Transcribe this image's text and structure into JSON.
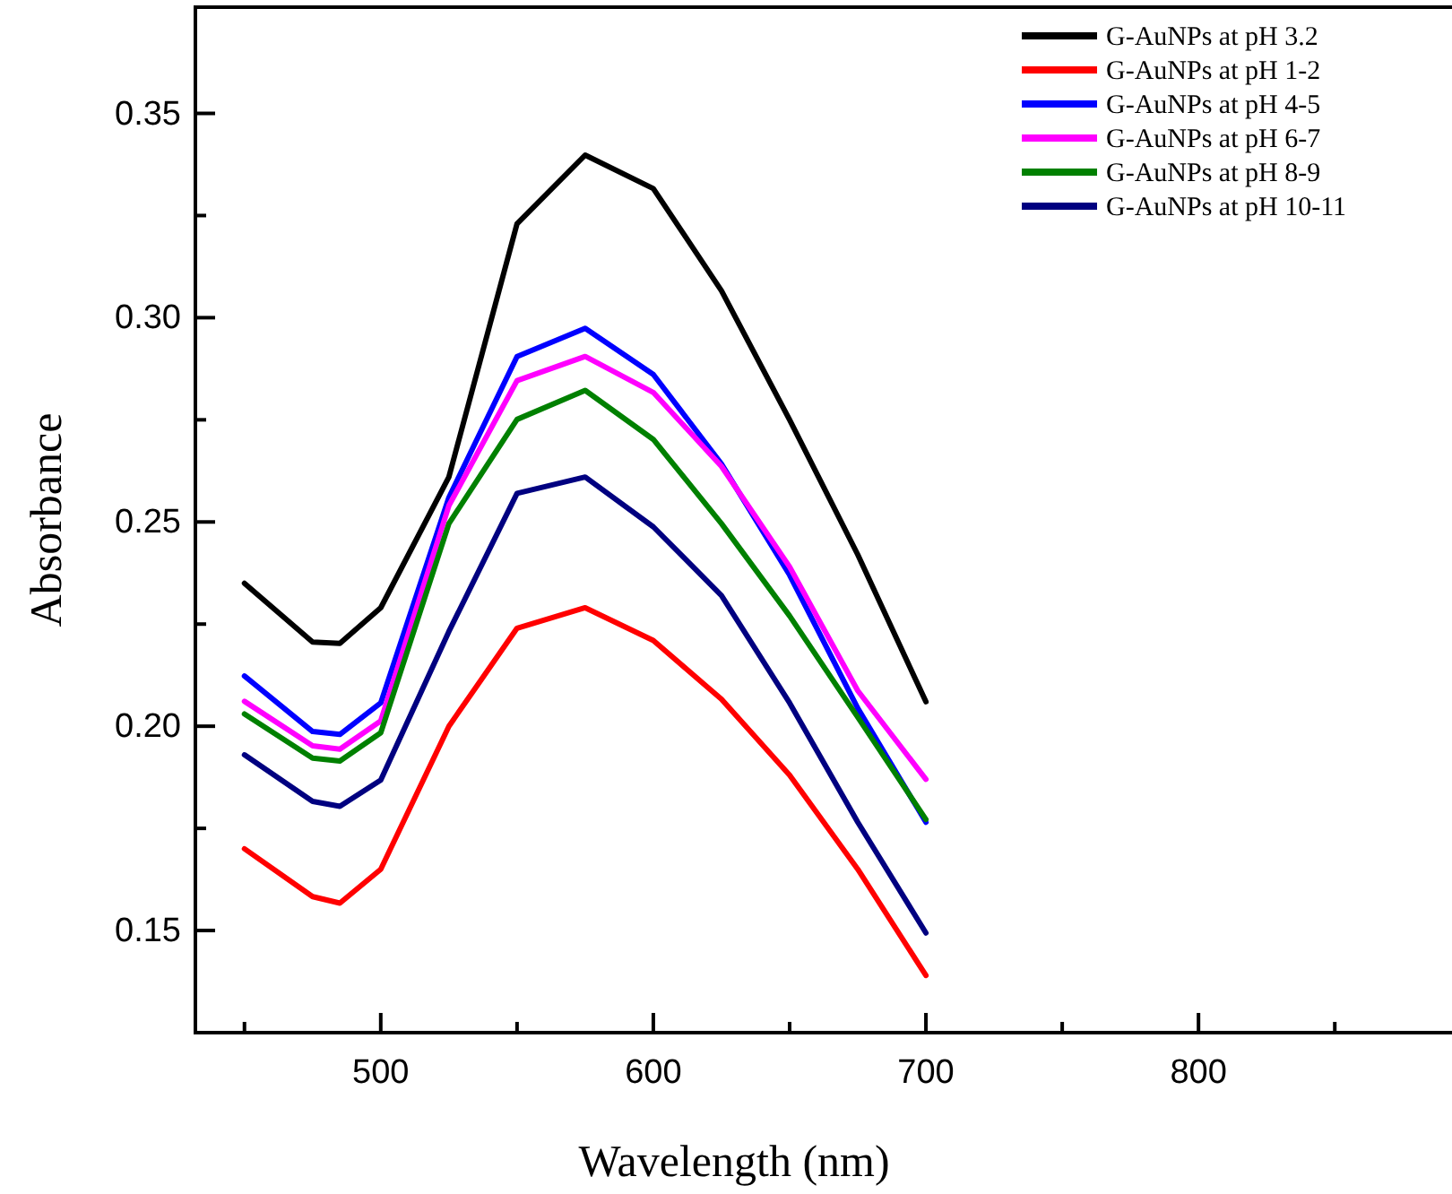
{
  "chart_data": {
    "type": "line",
    "xlabel": "Wavelength (nm)",
    "ylabel": "Absorbance",
    "x": [
      450,
      475,
      485,
      500,
      525,
      550,
      575,
      600,
      625,
      650,
      675,
      700
    ],
    "xlim": [
      432,
      893
    ],
    "xticks": [
      {
        "value": 450,
        "label": null
      },
      500,
      {
        "value": 550,
        "label": null
      },
      600,
      {
        "value": 650,
        "label": null
      },
      700,
      {
        "value": 750,
        "label": null
      },
      800,
      {
        "value": 850,
        "label": null
      }
    ],
    "ylim": [
      0.125,
      0.376
    ],
    "yticks": [
      0.15,
      {
        "value": 0.175,
        "label": null
      },
      {
        "value": 0.2,
        "label": "0.20"
      },
      {
        "value": 0.225,
        "label": null
      },
      0.25,
      {
        "value": 0.275,
        "label": null
      },
      {
        "value": 0.3,
        "label": "0.30"
      },
      {
        "value": 0.325,
        "label": null
      },
      0.35
    ],
    "legend": "top right",
    "grid": false,
    "marker": "none",
    "line_style": "solid",
    "series": [
      {
        "name": "G-AuNPs at pH 3.2",
        "color": "#000000",
        "values": [
          0.235,
          0.2206,
          0.2203,
          0.229,
          0.261,
          0.323,
          0.3398,
          0.3316,
          0.3066,
          0.275,
          0.242,
          0.206
        ]
      },
      {
        "name": "G-AuNPs at pH 1-2",
        "color": "#ff0000",
        "values": [
          0.17,
          0.1583,
          0.1567,
          0.165,
          0.2,
          0.224,
          0.229,
          0.221,
          0.2066,
          0.188,
          0.165,
          0.139
        ]
      },
      {
        "name": "G-AuNPs at pH 4-5",
        "color": "#0000ff",
        "values": [
          0.2123,
          0.1987,
          0.198,
          0.2057,
          0.256,
          0.2905,
          0.2974,
          0.2861,
          0.2642,
          0.237,
          0.2044,
          0.1765
        ]
      },
      {
        "name": "G-AuNPs at pH 6-7",
        "color": "#ff00ff",
        "values": [
          0.2061,
          0.1952,
          0.1944,
          0.2013,
          0.254,
          0.2846,
          0.2905,
          0.2817,
          0.2636,
          0.239,
          0.2087,
          0.187
        ]
      },
      {
        "name": "G-AuNPs at pH 8-9",
        "color": "#008000",
        "values": [
          0.203,
          0.1922,
          0.1915,
          0.1984,
          0.2496,
          0.2751,
          0.2822,
          0.2702,
          0.2496,
          0.227,
          0.2022,
          0.1772
        ]
      },
      {
        "name": "G-AuNPs at pH 10-11",
        "color": "#000080",
        "values": [
          0.193,
          0.1816,
          0.1804,
          0.1868,
          0.2232,
          0.257,
          0.261,
          0.2488,
          0.232,
          0.2057,
          0.1765,
          0.1494
        ]
      }
    ]
  }
}
